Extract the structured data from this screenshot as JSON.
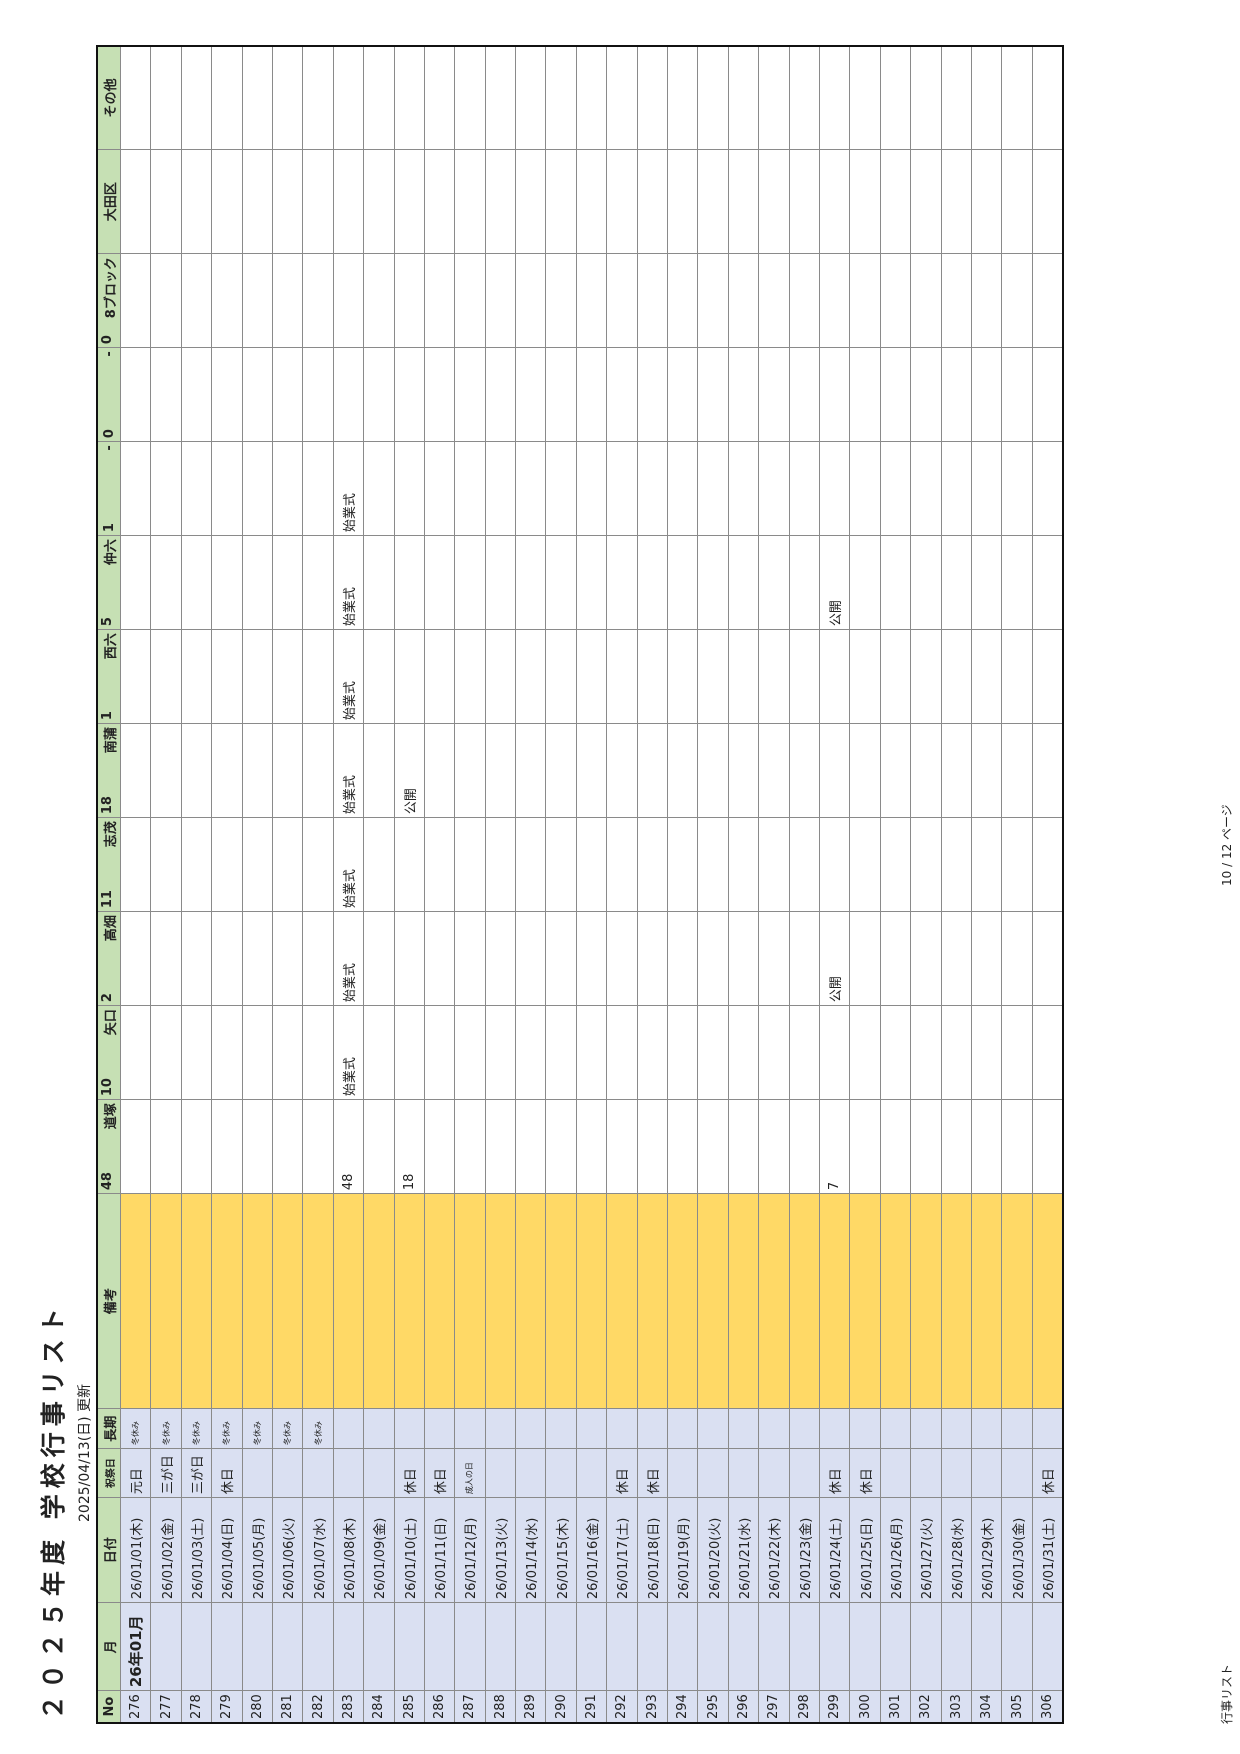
{
  "title": "２０２５年度 学校行事リスト",
  "updated": "2025/04/13(日) 更新",
  "headers": {
    "no": "No",
    "month": "月",
    "date": "日付",
    "holiday": "祝祭日",
    "longbreak": "長期",
    "note": "備考",
    "schools": [
      {
        "count": "48",
        "name": "道塚"
      },
      {
        "count": "10",
        "name": "矢口"
      },
      {
        "count": "2",
        "name": "高畑"
      },
      {
        "count": "11",
        "name": "志茂"
      },
      {
        "count": "18",
        "name": "南蒲"
      },
      {
        "count": "1",
        "name": "西六"
      },
      {
        "count": "5",
        "name": "仲六"
      },
      {
        "count": "1",
        "name": "-"
      },
      {
        "count": "0",
        "name": "-"
      },
      {
        "count": "0",
        "name": "8ブロック"
      }
    ],
    "ota": "大田区",
    "other": "その他"
  },
  "rows": [
    {
      "no": "276",
      "month": "26年01月",
      "date": "26/01/01(木)",
      "holiday": "元日",
      "longbreak": "冬休み",
      "s": [
        "",
        "",
        "",
        "",
        "",
        "",
        "",
        "",
        "",
        "",
        "",
        ""
      ]
    },
    {
      "no": "277",
      "month": "",
      "date": "26/01/02(金)",
      "holiday": "三が日",
      "longbreak": "冬休み",
      "s": [
        "",
        "",
        "",
        "",
        "",
        "",
        "",
        "",
        "",
        "",
        "",
        ""
      ]
    },
    {
      "no": "278",
      "month": "",
      "date": "26/01/03(土)",
      "holiday": "三が日",
      "longbreak": "冬休み",
      "s": [
        "",
        "",
        "",
        "",
        "",
        "",
        "",
        "",
        "",
        "",
        "",
        ""
      ]
    },
    {
      "no": "279",
      "month": "",
      "date": "26/01/04(日)",
      "holiday": "休日",
      "longbreak": "冬休み",
      "s": [
        "",
        "",
        "",
        "",
        "",
        "",
        "",
        "",
        "",
        "",
        "",
        ""
      ]
    },
    {
      "no": "280",
      "month": "",
      "date": "26/01/05(月)",
      "holiday": "",
      "longbreak": "冬休み",
      "s": [
        "",
        "",
        "",
        "",
        "",
        "",
        "",
        "",
        "",
        "",
        "",
        ""
      ]
    },
    {
      "no": "281",
      "month": "",
      "date": "26/01/06(火)",
      "holiday": "",
      "longbreak": "冬休み",
      "s": [
        "",
        "",
        "",
        "",
        "",
        "",
        "",
        "",
        "",
        "",
        "",
        ""
      ]
    },
    {
      "no": "282",
      "month": "",
      "date": "26/01/07(水)",
      "holiday": "",
      "longbreak": "冬休み",
      "s": [
        "",
        "",
        "",
        "",
        "",
        "",
        "",
        "",
        "",
        "",
        "",
        ""
      ]
    },
    {
      "no": "283",
      "month": "",
      "date": "26/01/08(木)",
      "holiday": "",
      "longbreak": "",
      "s": [
        "48",
        "始業式",
        "始業式",
        "始業式",
        "始業式",
        "始業式",
        "始業式",
        "始業式",
        "",
        "",
        "",
        ""
      ]
    },
    {
      "no": "284",
      "month": "",
      "date": "26/01/09(金)",
      "holiday": "",
      "longbreak": "",
      "s": [
        "",
        "",
        "",
        "",
        "",
        "",
        "",
        "",
        "",
        "",
        "",
        ""
      ]
    },
    {
      "no": "285",
      "month": "",
      "date": "26/01/10(土)",
      "holiday": "休日",
      "longbreak": "",
      "s": [
        "18",
        "",
        "",
        "",
        "公開",
        "",
        "",
        "",
        "",
        "",
        "",
        ""
      ]
    },
    {
      "no": "286",
      "month": "",
      "date": "26/01/11(日)",
      "holiday": "休日",
      "longbreak": "",
      "s": [
        "",
        "",
        "",
        "",
        "",
        "",
        "",
        "",
        "",
        "",
        "",
        ""
      ]
    },
    {
      "no": "287",
      "month": "",
      "date": "26/01/12(月)",
      "holiday": "成人の日",
      "longbreak": "",
      "s": [
        "",
        "",
        "",
        "",
        "",
        "",
        "",
        "",
        "",
        "",
        "",
        ""
      ]
    },
    {
      "no": "288",
      "month": "",
      "date": "26/01/13(火)",
      "holiday": "",
      "longbreak": "",
      "s": [
        "",
        "",
        "",
        "",
        "",
        "",
        "",
        "",
        "",
        "",
        "",
        ""
      ]
    },
    {
      "no": "289",
      "month": "",
      "date": "26/01/14(水)",
      "holiday": "",
      "longbreak": "",
      "s": [
        "",
        "",
        "",
        "",
        "",
        "",
        "",
        "",
        "",
        "",
        "",
        ""
      ]
    },
    {
      "no": "290",
      "month": "",
      "date": "26/01/15(木)",
      "holiday": "",
      "longbreak": "",
      "s": [
        "",
        "",
        "",
        "",
        "",
        "",
        "",
        "",
        "",
        "",
        "",
        ""
      ]
    },
    {
      "no": "291",
      "month": "",
      "date": "26/01/16(金)",
      "holiday": "",
      "longbreak": "",
      "s": [
        "",
        "",
        "",
        "",
        "",
        "",
        "",
        "",
        "",
        "",
        "",
        ""
      ]
    },
    {
      "no": "292",
      "month": "",
      "date": "26/01/17(土)",
      "holiday": "休日",
      "longbreak": "",
      "s": [
        "",
        "",
        "",
        "",
        "",
        "",
        "",
        "",
        "",
        "",
        "",
        ""
      ]
    },
    {
      "no": "293",
      "month": "",
      "date": "26/01/18(日)",
      "holiday": "休日",
      "longbreak": "",
      "s": [
        "",
        "",
        "",
        "",
        "",
        "",
        "",
        "",
        "",
        "",
        "",
        ""
      ]
    },
    {
      "no": "294",
      "month": "",
      "date": "26/01/19(月)",
      "holiday": "",
      "longbreak": "",
      "s": [
        "",
        "",
        "",
        "",
        "",
        "",
        "",
        "",
        "",
        "",
        "",
        ""
      ]
    },
    {
      "no": "295",
      "month": "",
      "date": "26/01/20(火)",
      "holiday": "",
      "longbreak": "",
      "s": [
        "",
        "",
        "",
        "",
        "",
        "",
        "",
        "",
        "",
        "",
        "",
        ""
      ]
    },
    {
      "no": "296",
      "month": "",
      "date": "26/01/21(水)",
      "holiday": "",
      "longbreak": "",
      "s": [
        "",
        "",
        "",
        "",
        "",
        "",
        "",
        "",
        "",
        "",
        "",
        ""
      ]
    },
    {
      "no": "297",
      "month": "",
      "date": "26/01/22(木)",
      "holiday": "",
      "longbreak": "",
      "s": [
        "",
        "",
        "",
        "",
        "",
        "",
        "",
        "",
        "",
        "",
        "",
        ""
      ]
    },
    {
      "no": "298",
      "month": "",
      "date": "26/01/23(金)",
      "holiday": "",
      "longbreak": "",
      "s": [
        "",
        "",
        "",
        "",
        "",
        "",
        "",
        "",
        "",
        "",
        "",
        ""
      ]
    },
    {
      "no": "299",
      "month": "",
      "date": "26/01/24(土)",
      "holiday": "休日",
      "longbreak": "",
      "s": [
        "7",
        "",
        "公開",
        "",
        "",
        "",
        "公開",
        "",
        "",
        "",
        "",
        ""
      ]
    },
    {
      "no": "300",
      "month": "",
      "date": "26/01/25(日)",
      "holiday": "休日",
      "longbreak": "",
      "s": [
        "",
        "",
        "",
        "",
        "",
        "",
        "",
        "",
        "",
        "",
        "",
        ""
      ]
    },
    {
      "no": "301",
      "month": "",
      "date": "26/01/26(月)",
      "holiday": "",
      "longbreak": "",
      "s": [
        "",
        "",
        "",
        "",
        "",
        "",
        "",
        "",
        "",
        "",
        "",
        ""
      ]
    },
    {
      "no": "302",
      "month": "",
      "date": "26/01/27(火)",
      "holiday": "",
      "longbreak": "",
      "s": [
        "",
        "",
        "",
        "",
        "",
        "",
        "",
        "",
        "",
        "",
        "",
        ""
      ]
    },
    {
      "no": "303",
      "month": "",
      "date": "26/01/28(水)",
      "holiday": "",
      "longbreak": "",
      "s": [
        "",
        "",
        "",
        "",
        "",
        "",
        "",
        "",
        "",
        "",
        "",
        ""
      ]
    },
    {
      "no": "304",
      "month": "",
      "date": "26/01/29(木)",
      "holiday": "",
      "longbreak": "",
      "s": [
        "",
        "",
        "",
        "",
        "",
        "",
        "",
        "",
        "",
        "",
        "",
        ""
      ]
    },
    {
      "no": "305",
      "month": "",
      "date": "26/01/30(金)",
      "holiday": "",
      "longbreak": "",
      "s": [
        "",
        "",
        "",
        "",
        "",
        "",
        "",
        "",
        "",
        "",
        "",
        ""
      ]
    },
    {
      "no": "306",
      "month": "",
      "date": "26/01/31(土)",
      "holiday": "休日",
      "longbreak": "",
      "s": [
        "",
        "",
        "",
        "",
        "",
        "",
        "",
        "",
        "",
        "",
        "",
        ""
      ]
    }
  ],
  "footer": {
    "sheet": "行事リスト",
    "page": "10 / 12 ページ"
  }
}
